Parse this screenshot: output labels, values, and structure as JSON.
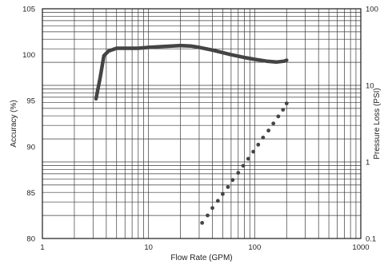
{
  "chart_data": {
    "type": "line",
    "title": "",
    "xlabel": "Flow Rate (GPM)",
    "ylabel": "Accuracy (%)",
    "y2label": "Pressure Loss (PSI)",
    "x_scale": "log",
    "xlim": [
      1,
      1000
    ],
    "ylim": [
      80,
      105
    ],
    "y2_scale": "log",
    "y2lim": [
      0.1,
      100
    ],
    "grid": true,
    "x_ticks": [
      "1",
      "10",
      "100",
      "1000"
    ],
    "y_ticks": [
      "80",
      "85",
      "90",
      "95",
      "100",
      "105"
    ],
    "y2_ticks": [
      "0.1",
      "1",
      "10",
      "100"
    ],
    "series": [
      {
        "axis": "left",
        "style": "solid",
        "color": "#444444",
        "x": [
          3.2,
          3.5,
          3.8,
          4.2,
          5,
          6,
          8,
          10,
          14,
          20,
          25,
          30,
          40,
          60,
          80,
          100,
          130,
          160,
          190,
          200
        ],
        "y": [
          95.2,
          97.5,
          99.9,
          100.4,
          100.7,
          100.7,
          100.7,
          100.8,
          100.9,
          101.0,
          100.95,
          100.8,
          100.5,
          100.0,
          99.7,
          99.5,
          99.3,
          99.2,
          99.3,
          99.4
        ]
      },
      {
        "axis": "right",
        "style": "dotted",
        "color": "#444444",
        "x": [
          32,
          36,
          40,
          45,
          50,
          56,
          62,
          70,
          78,
          87,
          97,
          108,
          120,
          135,
          150,
          167,
          185,
          200
        ],
        "y": [
          0.16,
          0.2,
          0.25,
          0.31,
          0.38,
          0.47,
          0.58,
          0.72,
          0.89,
          1.1,
          1.36,
          1.68,
          2.08,
          2.57,
          3.18,
          3.93,
          4.8,
          5.8
        ]
      }
    ]
  }
}
